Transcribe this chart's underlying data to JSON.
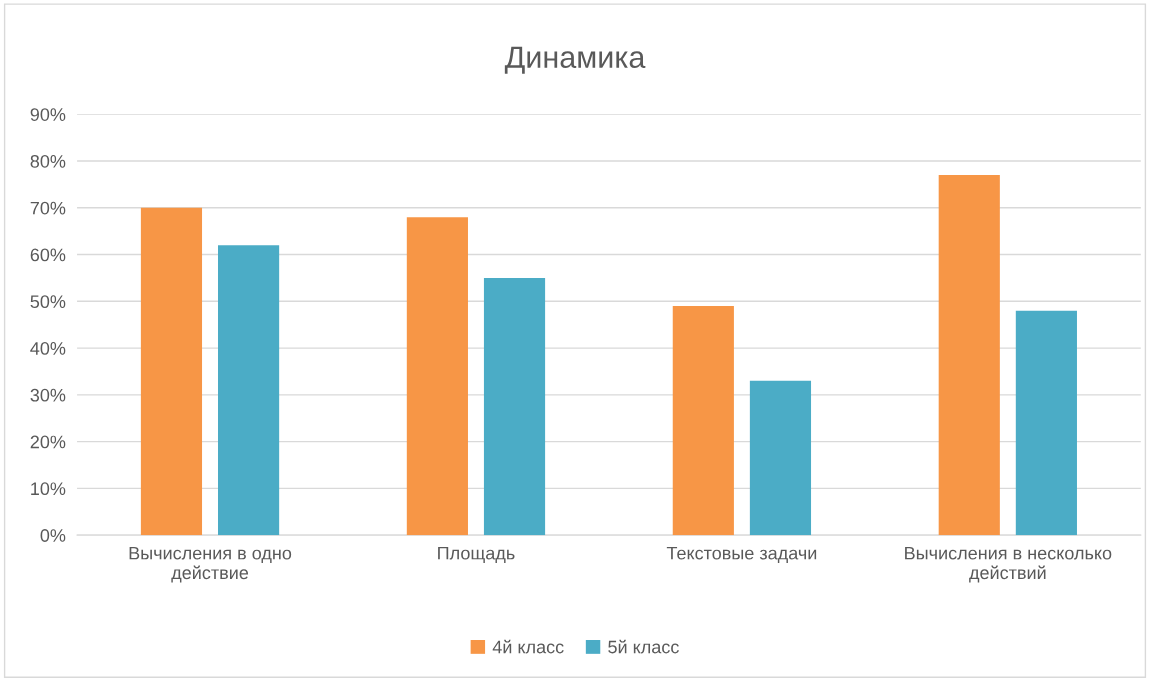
{
  "chart_data": {
    "type": "bar",
    "title": "Динамика",
    "categories": [
      "Вычисления в одно\nдействие",
      "Площадь",
      "Текстовые задачи",
      "Вычисления в несколько\nдействий"
    ],
    "series": [
      {
        "name": "4й класс",
        "color": "#f79646",
        "values": [
          70,
          68,
          49,
          77
        ]
      },
      {
        "name": "5й класс",
        "color": "#4bacc6",
        "values": [
          62,
          55,
          33,
          48
        ]
      }
    ],
    "ylim": [
      0,
      90
    ],
    "yticks": [
      {
        "value": 0,
        "label": "0%"
      },
      {
        "value": 10,
        "label": "10%"
      },
      {
        "value": 20,
        "label": "20%"
      },
      {
        "value": 30,
        "label": "30%"
      },
      {
        "value": 40,
        "label": "40%"
      },
      {
        "value": 50,
        "label": "50%"
      },
      {
        "value": 60,
        "label": "60%"
      },
      {
        "value": 70,
        "label": "70%"
      },
      {
        "value": 80,
        "label": "80%"
      },
      {
        "value": 90,
        "label": "90%"
      }
    ],
    "grid": "y",
    "legend": "bottom"
  }
}
